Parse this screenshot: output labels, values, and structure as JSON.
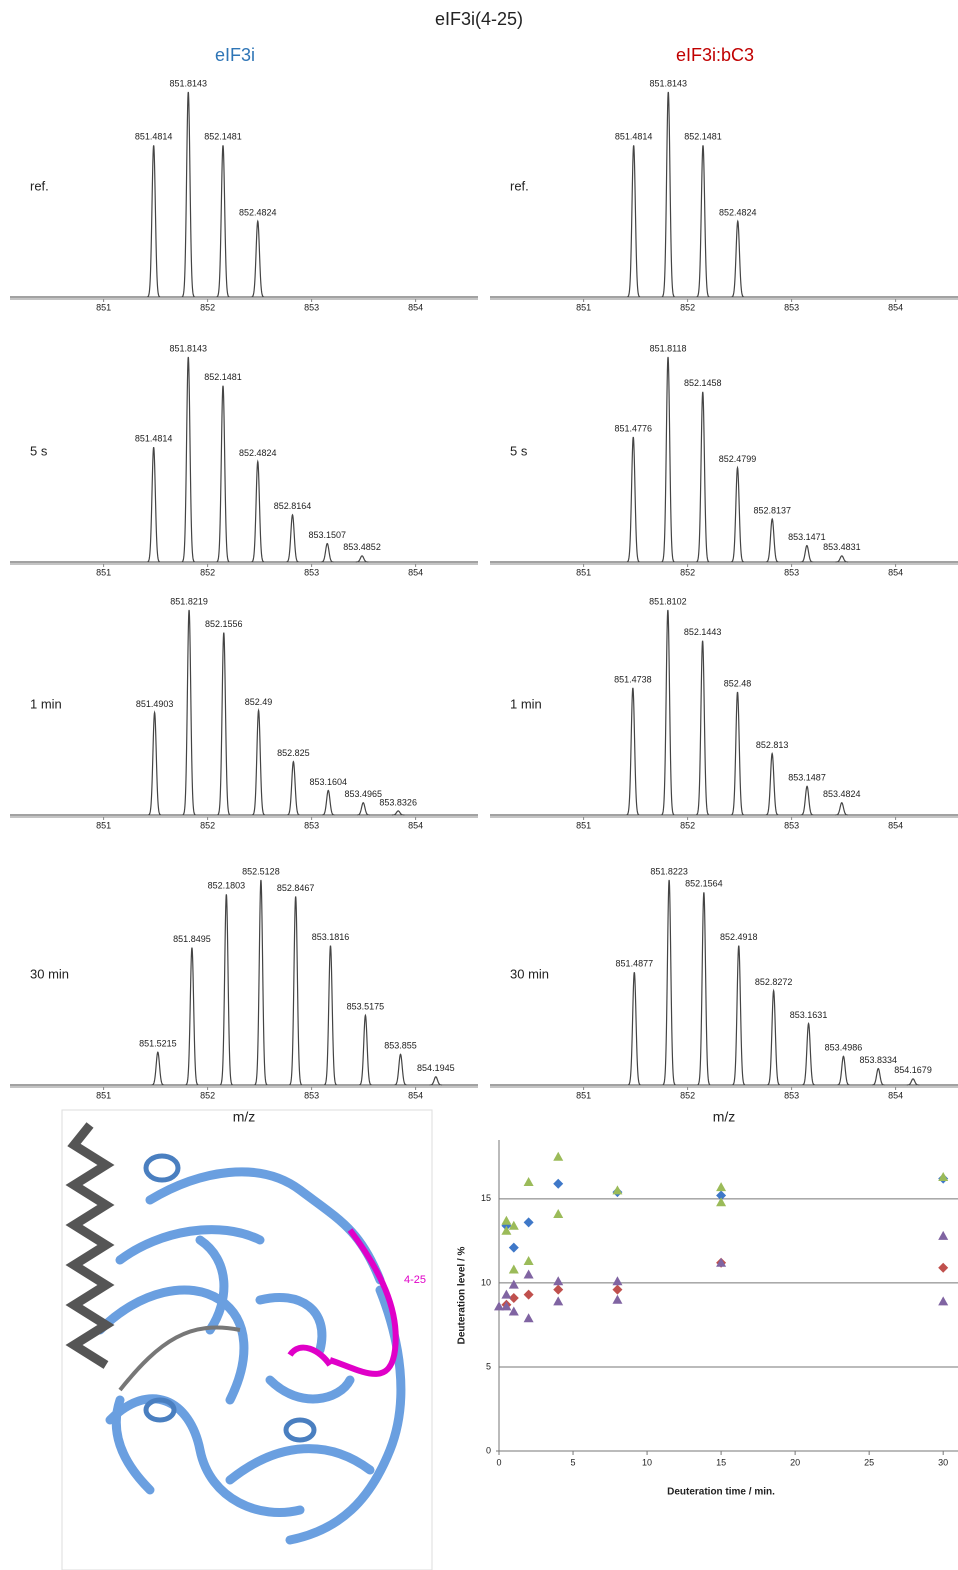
{
  "title": "eIF3i(4-25)",
  "column_titles": [
    "eIF3i",
    "eIF3i:bC3"
  ],
  "structure": {
    "label": "4-25"
  },
  "chart_data": [
    {
      "type": "spectrum",
      "annotation": "ref.",
      "xlim": [
        850.1,
        854.6
      ],
      "xticks": [
        851,
        852,
        853,
        854
      ],
      "color": "#444",
      "x": [
        851.4814,
        851.8143,
        852.1481,
        852.4824
      ],
      "values": [
        74,
        100,
        74,
        37
      ]
    },
    {
      "type": "spectrum",
      "annotation": "ref.",
      "xlim": [
        850.1,
        854.6
      ],
      "xticks": [
        851,
        852,
        853,
        854
      ],
      "color": "#444",
      "x": [
        851.4814,
        851.8143,
        852.1481,
        852.4824
      ],
      "values": [
        74,
        100,
        74,
        37
      ]
    },
    {
      "type": "spectrum",
      "annotation": "5 s",
      "xlim": [
        850.1,
        854.6
      ],
      "xticks": [
        851,
        852,
        853,
        854
      ],
      "color": "#444",
      "x": [
        851.4814,
        851.8143,
        852.1481,
        852.4824,
        852.8164,
        853.1507,
        853.4852
      ],
      "values": [
        56,
        100,
        86,
        49,
        23,
        9,
        3
      ]
    },
    {
      "type": "spectrum",
      "annotation": "5 s",
      "xlim": [
        850.1,
        854.6
      ],
      "xticks": [
        851,
        852,
        853,
        854
      ],
      "color": "#444",
      "x": [
        851.4776,
        851.8118,
        852.1458,
        852.4799,
        852.8137,
        853.1471,
        853.4831
      ],
      "values": [
        61,
        100,
        83,
        46,
        21,
        8,
        3
      ]
    },
    {
      "type": "spectrum",
      "annotation": "1 min",
      "xlim": [
        850.1,
        854.6
      ],
      "xticks": [
        851,
        852,
        853,
        854
      ],
      "color": "#444",
      "x": [
        851.4903,
        851.8219,
        852.1556,
        852.49,
        852.825,
        853.1604,
        853.4965,
        853.8326
      ],
      "values": [
        50,
        100,
        89,
        51,
        26,
        12,
        6,
        2
      ]
    },
    {
      "type": "spectrum",
      "annotation": "1 min",
      "xlim": [
        850.1,
        854.6
      ],
      "xticks": [
        851,
        852,
        853,
        854
      ],
      "color": "#444",
      "x": [
        851.4738,
        851.8102,
        852.1443,
        852.48,
        852.813,
        853.1487,
        853.4824
      ],
      "values": [
        62,
        100,
        85,
        60,
        30,
        14,
        6
      ]
    },
    {
      "type": "spectrum",
      "annotation": "30 min",
      "xlabel": "m/z",
      "xlim": [
        850.1,
        854.6
      ],
      "xticks": [
        851,
        852,
        853,
        854
      ],
      "color": "#444",
      "x": [
        851.5215,
        851.8495,
        852.1803,
        852.5128,
        852.8467,
        853.1816,
        853.5175,
        853.855,
        854.1945
      ],
      "values": [
        16,
        67,
        93,
        100,
        92,
        68,
        34,
        15,
        4
      ]
    },
    {
      "type": "spectrum",
      "annotation": "30 min",
      "xlabel": "m/z",
      "xlim": [
        850.1,
        854.6
      ],
      "xticks": [
        851,
        852,
        853,
        854
      ],
      "color": "#444",
      "x": [
        851.4877,
        851.8223,
        852.1564,
        852.4918,
        852.8272,
        853.1631,
        853.4986,
        853.8334,
        854.1679
      ],
      "values": [
        55,
        100,
        94,
        68,
        46,
        30,
        14,
        8,
        3
      ]
    },
    {
      "type": "scatter",
      "xlabel": "Deuteration time / min.",
      "ylabel": "Deuteration level / %",
      "xlim": [
        0,
        31
      ],
      "ylim": [
        0,
        18.5
      ],
      "xticks": [
        0,
        5,
        10,
        15,
        20,
        25,
        30
      ],
      "yticks": [
        0,
        5,
        10,
        15
      ],
      "grid": true,
      "series": [
        {
          "marker": "diamond",
          "color": "#3f78c8",
          "x": [
            0.5,
            1,
            2,
            4,
            8,
            15,
            30
          ],
          "values": [
            13.4,
            12.1,
            13.6,
            15.9,
            15.4,
            15.2,
            16.2
          ]
        },
        {
          "marker": "triangle",
          "color": "#9bbb59",
          "x": [
            0.5,
            0.5,
            1,
            1,
            2,
            2,
            4,
            4,
            8,
            15,
            15,
            30
          ],
          "values": [
            13.7,
            13.1,
            13.4,
            10.8,
            16,
            11.3,
            17.5,
            14.1,
            15.5,
            15.7,
            14.8,
            16.3
          ]
        },
        {
          "marker": "diamond",
          "color": "#c0504d",
          "x": [
            0.5,
            1,
            2,
            4,
            8,
            15,
            30
          ],
          "values": [
            8.7,
            9.1,
            9.3,
            9.6,
            9.6,
            11.2,
            10.9
          ]
        },
        {
          "marker": "triangle",
          "color": "#8064a2",
          "x": [
            0,
            0.5,
            0.5,
            1,
            1,
            2,
            2,
            4,
            4,
            8,
            8,
            15,
            30,
            30
          ],
          "values": [
            8.6,
            8.6,
            9.3,
            8.3,
            9.9,
            7.9,
            10.5,
            8.9,
            10.1,
            9,
            10.1,
            11.2,
            12.8,
            8.9
          ]
        }
      ]
    }
  ]
}
